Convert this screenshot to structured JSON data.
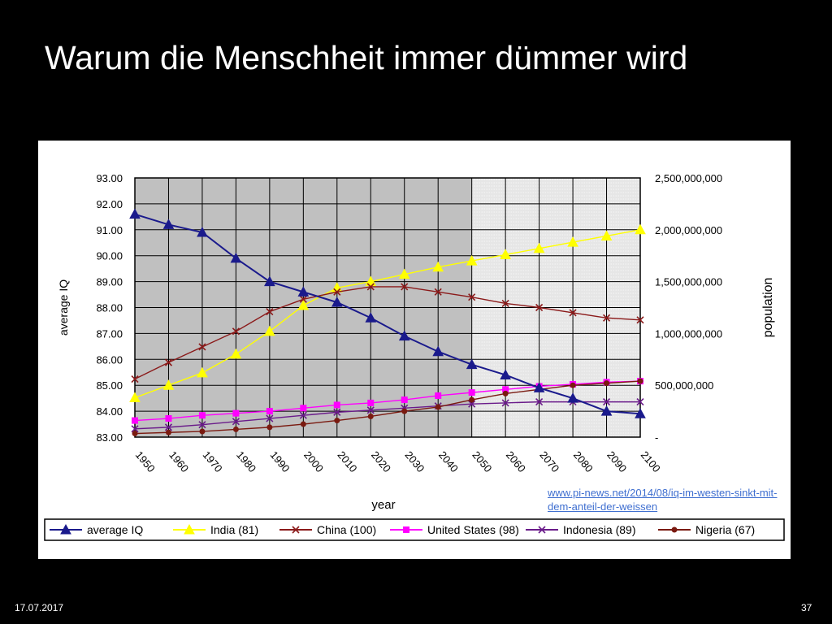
{
  "slide": {
    "title": "Warum die Menschheit immer dümmer wird",
    "date": "17.07.2017",
    "page_number": "37",
    "source_link": "www.pi-news.net/2014/08/iq-im-westen-sinkt-mit-dem-anteil-der-weissen"
  },
  "chart_data": {
    "type": "line",
    "title": "",
    "xlabel": "year",
    "ylabel": "average IQ",
    "y2label": "population",
    "x": [
      1950,
      1960,
      1970,
      1980,
      1990,
      2000,
      2010,
      2020,
      2030,
      2040,
      2050,
      2060,
      2070,
      2080,
      2090,
      2100
    ],
    "x_tick_labels": [
      "1950",
      "1960",
      "1970",
      "1980",
      "1990",
      "2000",
      "2010",
      "2020",
      "2030",
      "2040",
      "2050",
      "2060",
      "2070",
      "2080",
      "2090",
      "2100"
    ],
    "ylim": [
      83,
      93
    ],
    "y_tick_labels": [
      "83.00",
      "84.00",
      "85.00",
      "86.00",
      "87.00",
      "88.00",
      "89.00",
      "90.00",
      "91.00",
      "92.00",
      "93.00"
    ],
    "y2lim": [
      0,
      2500000000
    ],
    "y2_tick_labels": [
      "-",
      "500,000,000",
      "1,000,000,000",
      "1,500,000,000",
      "2,000,000,000",
      "2,500,000,000"
    ],
    "projection_start": 2050,
    "grid": true,
    "legend_position": "bottom",
    "series": [
      {
        "name": "average IQ",
        "axis": "left",
        "color": "#1a1a8c",
        "marker": "triangle",
        "values": [
          91.6,
          91.2,
          90.9,
          89.9,
          89.0,
          88.6,
          88.2,
          87.6,
          86.9,
          86.3,
          85.8,
          85.4,
          84.9,
          84.5,
          84.0,
          83.9
        ]
      },
      {
        "name": "India (81)",
        "axis": "right",
        "color": "#ffff00",
        "marker": "triangle",
        "values": [
          380000000,
          500000000,
          620000000,
          800000000,
          1020000000,
          1270000000,
          1440000000,
          1500000000,
          1570000000,
          1640000000,
          1700000000,
          1760000000,
          1820000000,
          1880000000,
          1940000000,
          2000000000
        ]
      },
      {
        "name": "China (100)",
        "axis": "right",
        "color": "#8b1a1a",
        "marker": "x",
        "values": [
          560000000,
          720000000,
          870000000,
          1020000000,
          1210000000,
          1330000000,
          1400000000,
          1450000000,
          1450000000,
          1400000000,
          1350000000,
          1290000000,
          1250000000,
          1200000000,
          1150000000,
          1130000000
        ]
      },
      {
        "name": "United States (98)",
        "axis": "right",
        "color": "#ff00ff",
        "marker": "square",
        "values": [
          160000000,
          180000000,
          210000000,
          230000000,
          250000000,
          280000000,
          310000000,
          330000000,
          360000000,
          400000000,
          430000000,
          460000000,
          490000000,
          510000000,
          530000000,
          540000000
        ]
      },
      {
        "name": "Indonesia (89)",
        "axis": "right",
        "color": "#6a1b8a",
        "marker": "x",
        "values": [
          80000000,
          95000000,
          120000000,
          150000000,
          180000000,
          210000000,
          240000000,
          260000000,
          280000000,
          300000000,
          320000000,
          330000000,
          340000000,
          340000000,
          340000000,
          340000000
        ]
      },
      {
        "name": "Nigeria (67)",
        "axis": "right",
        "color": "#7a1a10",
        "marker": "circle",
        "values": [
          35000000,
          45000000,
          55000000,
          75000000,
          95000000,
          125000000,
          160000000,
          200000000,
          250000000,
          290000000,
          360000000,
          420000000,
          460000000,
          500000000,
          520000000,
          540000000
        ]
      }
    ]
  }
}
